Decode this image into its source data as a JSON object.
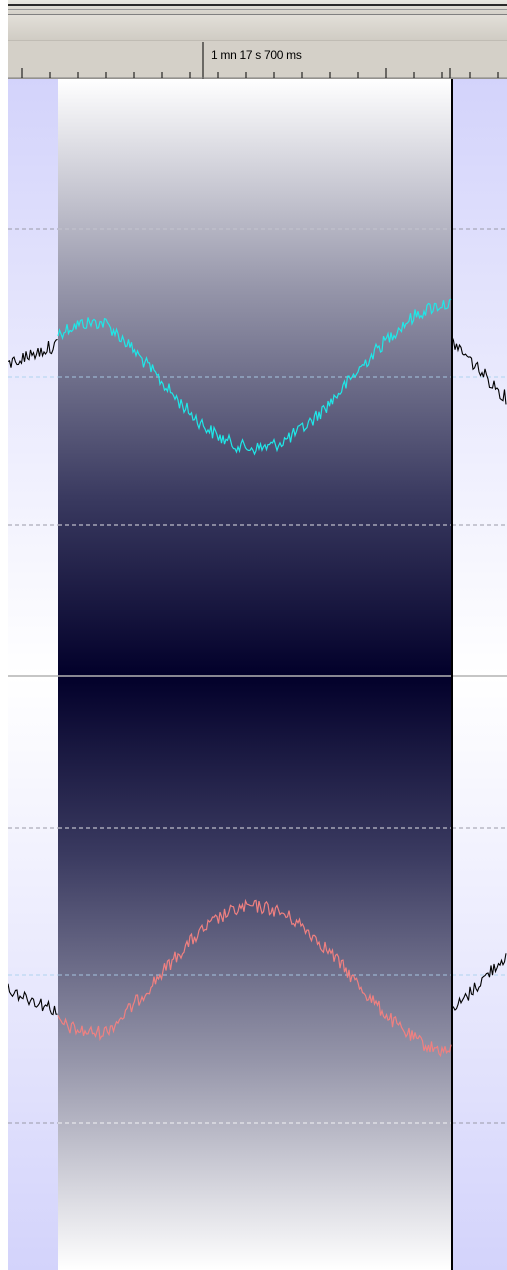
{
  "timeline": {
    "cursor_time_label": "1 mn 17 s 700 ms"
  },
  "colors": {
    "unselected_fill": "#d3d3fb",
    "selection_dark": "#02002a",
    "channel_1_wave": "#1ee8e8",
    "channel_2_wave": "#f08080",
    "unselected_wave": "#000000",
    "gridline_dark": "#9a9aa8",
    "gridline_light": "#ffffff",
    "center_line": "#b0d4f0"
  },
  "waveform": {
    "channel_1": {
      "description_icon": "top-channel"
    },
    "channel_2": {
      "description_icon": "bottom-channel"
    }
  }
}
